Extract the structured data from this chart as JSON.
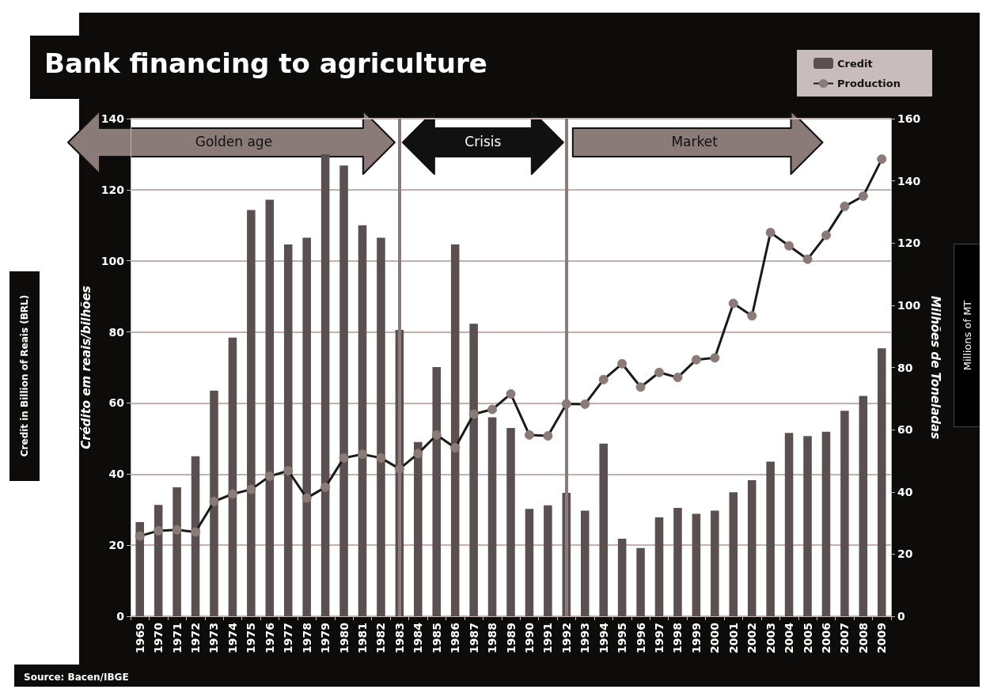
{
  "chart_data": {
    "type": "bar",
    "title": "Bank financing to agriculture",
    "ylabel": "Crédito em reais/bilhões",
    "y2label": "Milhões de Toneladas",
    "annotations": [
      "Golden age",
      "Crisis",
      "Market",
      "Credit in Billion of Reais (BRL)",
      "Millions of MT",
      "Source: Bacen/IBGE"
    ],
    "categories": [
      "1969",
      "1970",
      "1971",
      "1972",
      "1973",
      "1974",
      "1975",
      "1976",
      "1977",
      "1978",
      "1979",
      "1980",
      "1981",
      "1982",
      "1983",
      "1984",
      "1985",
      "1986",
      "1987",
      "1988",
      "1989",
      "1990",
      "1991",
      "1992",
      "1993",
      "1994",
      "1995",
      "1996",
      "1997",
      "1998",
      "1999",
      "2000",
      "2001",
      "2002",
      "2003",
      "2004",
      "2005",
      "2006",
      "2007",
      "2008",
      "2009"
    ],
    "series": [
      {
        "name": "Credit",
        "color": "#5a5050",
        "values": [
          26.5,
          31.3,
          36.3,
          45,
          63.5,
          78.4,
          114.3,
          117.2,
          104.6,
          106.5,
          130,
          126.8,
          110,
          106.5,
          80.6,
          49,
          70.1,
          104.6,
          82.3,
          56,
          53,
          30.2,
          31.2,
          34.7,
          29.7,
          48.6,
          21.8,
          19.2,
          27.8,
          30.5,
          28.8,
          29.7,
          34.9,
          38.3,
          43.5,
          51.6,
          50.7,
          51.9,
          57.8,
          62,
          75.4
        ]
      },
      {
        "name": "Production",
        "type": "line",
        "axis": "y2",
        "color": "#1a1a1a",
        "values": [
          25.8,
          27.5,
          27.8,
          27.1,
          36.9,
          39.3,
          40.8,
          45,
          46.8,
          38,
          41.5,
          50.9,
          52.1,
          50.9,
          47.4,
          52.3,
          58.3,
          54.2,
          65,
          66.5,
          71.5,
          58.3,
          58,
          68.3,
          68.2,
          76.1,
          81.2,
          73.7,
          78.4,
          76.8,
          82.5,
          83.1,
          100.6,
          96.6,
          123.4,
          119.1,
          114.8,
          122.5,
          131.8,
          135.1,
          147
        ]
      }
    ],
    "ylim": [
      0,
      140
    ],
    "yticks": [
      0,
      20,
      40,
      60,
      80,
      100,
      120,
      140
    ],
    "y2lim": [
      0,
      160
    ],
    "y2ticks": [
      0,
      20,
      40,
      60,
      80,
      100,
      120,
      140,
      160
    ],
    "ref_lines": [
      {
        "axis": "x",
        "value": "1983",
        "color": "#8a7a78"
      },
      {
        "axis": "x",
        "value": "1992",
        "color": "#8a7a78"
      }
    ],
    "grid": "y",
    "legend": "top right",
    "marker": "circle",
    "line_style": "solid"
  }
}
